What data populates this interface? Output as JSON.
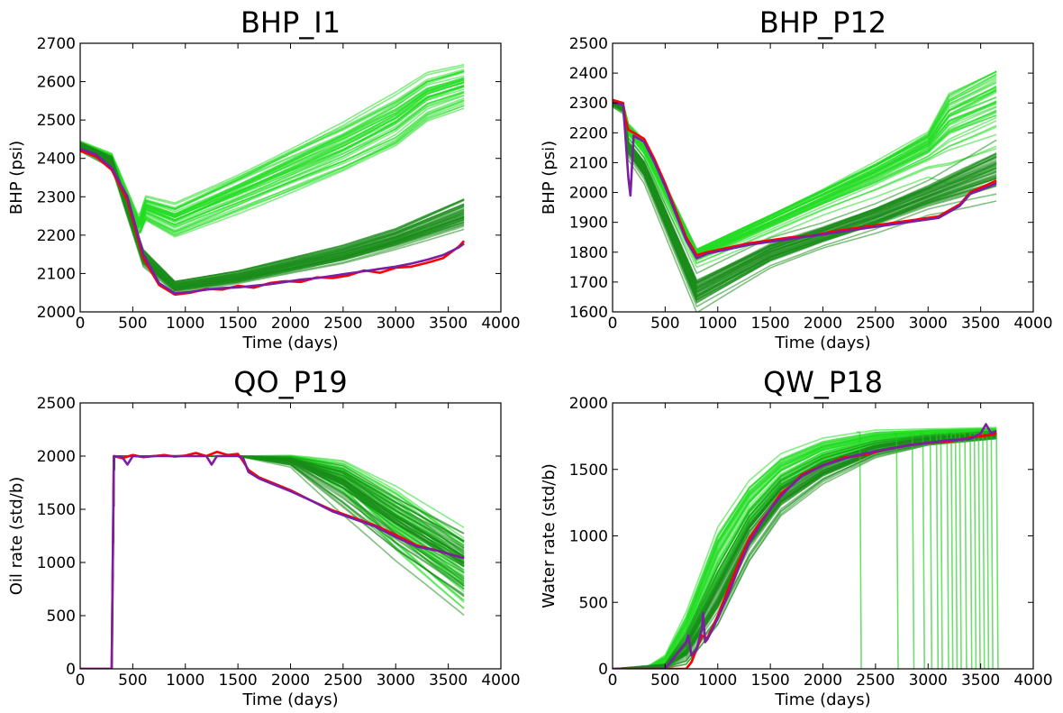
{
  "chart_data": [
    {
      "type": "line",
      "title": "BHP_I1",
      "xlabel": "Time (days)",
      "ylabel": "BHP (psi)",
      "xlim": [
        0,
        4000
      ],
      "ylim": [
        2000,
        2700
      ],
      "xticks": [
        0,
        500,
        1000,
        1500,
        2000,
        2500,
        3000,
        3500,
        4000
      ],
      "yticks": [
        2000,
        2100,
        2200,
        2300,
        2400,
        2500,
        2600,
        2700
      ],
      "ensemble": {
        "groups": [
          {
            "n": 45,
            "color": "#22dd22",
            "opacity": 0.55,
            "x": [
              0,
              300,
              560,
              620,
              900,
              1500,
              2000,
              2500,
              3000,
              3300,
              3650
            ],
            "y": [
              2435,
              2400,
              2220,
              2270,
              2240,
              2310,
              2370,
              2430,
              2500,
              2560,
              2590
            ],
            "spread": [
              8,
              10,
              20,
              25,
              35,
              40,
              45,
              50,
              55,
              50,
              45
            ]
          },
          {
            "n": 45,
            "color": "#1a8c1a",
            "opacity": 0.55,
            "x": [
              0,
              300,
              600,
              900,
              1500,
              2000,
              2500,
              3000,
              3650
            ],
            "y": [
              2430,
              2390,
              2140,
              2065,
              2090,
              2120,
              2150,
              2190,
              2255
            ],
            "spread": [
              8,
              10,
              15,
              10,
              12,
              14,
              16,
              18,
              28
            ]
          }
        ]
      },
      "series": [
        {
          "name": "",
          "color": "#ff0000",
          "x": [
            0,
            150,
            300,
            450,
            600,
            750,
            900,
            1050,
            1200,
            1350,
            1500,
            1650,
            1800,
            1950,
            2100,
            2250,
            2400,
            2550,
            2700,
            2850,
            3000,
            3150,
            3300,
            3450,
            3600,
            3650
          ],
          "y": [
            2420,
            2405,
            2370,
            2290,
            2140,
            2070,
            2045,
            2050,
            2060,
            2058,
            2068,
            2063,
            2075,
            2080,
            2078,
            2090,
            2088,
            2095,
            2108,
            2102,
            2115,
            2118,
            2128,
            2140,
            2170,
            2185
          ]
        },
        {
          "name": "",
          "color": "#7b1fa2",
          "x": [
            0,
            150,
            300,
            450,
            600,
            750,
            900,
            1050,
            1200,
            1350,
            1500,
            1650,
            1800,
            1950,
            2100,
            2250,
            2400,
            2550,
            2700,
            2850,
            3000,
            3150,
            3300,
            3450,
            3600,
            3650
          ],
          "y": [
            2425,
            2410,
            2375,
            2300,
            2150,
            2075,
            2048,
            2052,
            2058,
            2062,
            2064,
            2068,
            2072,
            2078,
            2084,
            2088,
            2094,
            2100,
            2106,
            2112,
            2118,
            2126,
            2136,
            2148,
            2168,
            2178
          ]
        }
      ]
    },
    {
      "type": "line",
      "title": "BHP_P12",
      "xlabel": "Time (days)",
      "ylabel": "BHP (psi)",
      "xlim": [
        0,
        4000
      ],
      "ylim": [
        1600,
        2500
      ],
      "xticks": [
        0,
        500,
        1000,
        1500,
        2000,
        2500,
        3000,
        3500,
        4000
      ],
      "yticks": [
        1600,
        1700,
        1800,
        1900,
        2000,
        2100,
        2200,
        2300,
        2400,
        2500
      ],
      "ensemble": {
        "groups": [
          {
            "n": 45,
            "color": "#22dd22",
            "opacity": 0.55,
            "x": [
              0,
              100,
              150,
              300,
              800,
              1500,
              2000,
              2500,
              3000,
              3200,
              3650
            ],
            "y": [
              2300,
              2290,
              2210,
              2150,
              1790,
              1900,
              1980,
              2060,
              2150,
              2230,
              2300
            ],
            "spread": [
              8,
              10,
              20,
              25,
              20,
              25,
              30,
              40,
              50,
              100,
              110
            ]
          },
          {
            "n": 45,
            "color": "#1a8c1a",
            "opacity": 0.55,
            "x": [
              0,
              100,
              150,
              300,
              800,
              1500,
              2000,
              2500,
              3000,
              3650
            ],
            "y": [
              2300,
              2280,
              2150,
              2080,
              1670,
              1800,
              1860,
              1920,
              1990,
              2080
            ],
            "spread": [
              8,
              10,
              25,
              30,
              45,
              35,
              30,
              35,
              40,
              70
            ]
          }
        ]
      },
      "series": [
        {
          "name": "",
          "color": "#ff0000",
          "x": [
            0,
            100,
            120,
            150,
            200,
            300,
            400,
            500,
            600,
            700,
            800,
            900,
            1100,
            1300,
            1500,
            1700,
            1900,
            2100,
            2300,
            2500,
            2700,
            2900,
            3100,
            3300,
            3400,
            3650
          ],
          "y": [
            2310,
            2300,
            2250,
            2210,
            2200,
            2180,
            2110,
            2030,
            1940,
            1850,
            1790,
            1800,
            1815,
            1830,
            1840,
            1850,
            1855,
            1870,
            1880,
            1890,
            1900,
            1910,
            1920,
            1960,
            2000,
            2040
          ]
        },
        {
          "name": "",
          "color": "#7b1fa2",
          "x": [
            0,
            100,
            120,
            150,
            170,
            200,
            300,
            400,
            500,
            600,
            700,
            800,
            900,
            1100,
            1300,
            1500,
            1700,
            1900,
            2100,
            2300,
            2500,
            2700,
            2900,
            3100,
            3300,
            3400,
            3650
          ],
          "y": [
            2300,
            2295,
            2200,
            2050,
            1990,
            2190,
            2170,
            2100,
            2020,
            1930,
            1840,
            1780,
            1795,
            1810,
            1825,
            1835,
            1845,
            1855,
            1865,
            1875,
            1885,
            1895,
            1905,
            1915,
            1955,
            1995,
            2030
          ]
        }
      ]
    },
    {
      "type": "line",
      "title": "QO_P19",
      "xlabel": "Time (days)",
      "ylabel": "Oil rate (std/b)",
      "xlim": [
        0,
        4000
      ],
      "ylim": [
        0,
        2500
      ],
      "xticks": [
        0,
        500,
        1000,
        1500,
        2000,
        2500,
        3000,
        3500,
        4000
      ],
      "yticks": [
        0,
        500,
        1000,
        1500,
        2000,
        2500
      ],
      "ensemble": {
        "groups": [
          {
            "n": 45,
            "color": "#22dd22",
            "opacity": 0.55,
            "x": [
              0,
              300,
              320,
              1500,
              2000,
              2500,
              3000,
              3650
            ],
            "y": [
              0,
              0,
              2000,
              2000,
              1990,
              1800,
              1400,
              900
            ],
            "spread": [
              0,
              0,
              0,
              0,
              10,
              100,
              200,
              250
            ]
          },
          {
            "n": 45,
            "color": "#1a8c1a",
            "opacity": 0.55,
            "x": [
              0,
              300,
              320,
              1500,
              2000,
              2500,
              3000,
              3650
            ],
            "y": [
              0,
              0,
              2000,
              2000,
              1950,
              1700,
              1350,
              950
            ],
            "spread": [
              0,
              0,
              0,
              0,
              30,
              150,
              200,
              250
            ]
          }
        ]
      },
      "series": [
        {
          "name": "",
          "color": "#ff0000",
          "x": [
            0,
            300,
            320,
            400,
            500,
            600,
            700,
            800,
            900,
            1000,
            1100,
            1200,
            1300,
            1400,
            1500,
            1550,
            1600,
            1700,
            1800,
            2000,
            2200,
            2400,
            2600,
            2800,
            3000,
            3200,
            3400,
            3650
          ],
          "y": [
            0,
            0,
            2000,
            1980,
            2010,
            1990,
            2000,
            2010,
            1995,
            2005,
            2030,
            2000,
            2040,
            2010,
            2020,
            1950,
            1870,
            1800,
            1760,
            1680,
            1580,
            1490,
            1420,
            1350,
            1260,
            1160,
            1110,
            1040
          ]
        },
        {
          "name": "",
          "color": "#7b1fa2",
          "x": [
            0,
            300,
            320,
            400,
            450,
            500,
            600,
            700,
            800,
            900,
            1000,
            1100,
            1200,
            1250,
            1300,
            1400,
            1500,
            1550,
            1600,
            1700,
            1800,
            2000,
            2200,
            2400,
            2600,
            2800,
            3000,
            3200,
            3400,
            3650
          ],
          "y": [
            0,
            0,
            2000,
            1990,
            1920,
            2000,
            1995,
            2000,
            2000,
            2000,
            2000,
            2000,
            2000,
            1920,
            2000,
            2000,
            2000,
            1980,
            1850,
            1790,
            1750,
            1670,
            1580,
            1480,
            1410,
            1340,
            1240,
            1150,
            1110,
            1040
          ]
        }
      ]
    },
    {
      "type": "line",
      "title": "QW_P18",
      "xlabel": "Time (days)",
      "ylabel": "Water rate (std/b)",
      "xlim": [
        0,
        4000
      ],
      "ylim": [
        0,
        2000
      ],
      "xticks": [
        0,
        500,
        1000,
        1500,
        2000,
        2500,
        3000,
        3500,
        4000
      ],
      "yticks": [
        0,
        500,
        1000,
        1500,
        2000
      ],
      "ensemble": {
        "groups": [
          {
            "n": 45,
            "color": "#22dd22",
            "opacity": 0.55,
            "x": [
              0,
              300,
              500,
              700,
              1000,
              1300,
              1600,
              2000,
              2500,
              3000,
              3650
            ],
            "y": [
              0,
              0,
              50,
              250,
              800,
              1200,
              1450,
              1620,
              1720,
              1760,
              1780
            ],
            "spread": [
              0,
              0,
              30,
              100,
              150,
              120,
              90,
              60,
              40,
              25,
              20
            ]
          },
          {
            "n": 45,
            "color": "#1a8c1a",
            "opacity": 0.55,
            "x": [
              0,
              500,
              700,
              1000,
              1300,
              1600,
              2000,
              2500,
              3000,
              3650
            ],
            "y": [
              0,
              20,
              150,
              550,
              1000,
              1300,
              1500,
              1650,
              1720,
              1760
            ],
            "spread": [
              0,
              10,
              80,
              150,
              130,
              100,
              70,
              40,
              25,
              20
            ]
          }
        ],
        "dropoffs": {
          "color": "#22cc22",
          "opacity": 0.65,
          "x": [
            2350,
            2700,
            2850,
            2950,
            3020,
            3080,
            3120,
            3180,
            3220,
            3260,
            3300,
            3350,
            3400,
            3440,
            3480,
            3520,
            3560,
            3600,
            3650
          ],
          "y": [
            1780,
            1770,
            1760,
            1770,
            1760,
            1775,
            1770,
            1765,
            1780,
            1770,
            1775,
            1770,
            1780,
            1775,
            1770,
            1780,
            1775,
            1780,
            1770
          ]
        }
      },
      "series": [
        {
          "name": "",
          "color": "#ff0000",
          "x": [
            0,
            600,
            700,
            750,
            800,
            850,
            900,
            1000,
            1100,
            1200,
            1300,
            1400,
            1500,
            1600,
            1700,
            1800,
            2000,
            2200,
            2400,
            2600,
            2800,
            3000,
            3200,
            3400,
            3600,
            3650
          ],
          "y": [
            0,
            0,
            0,
            50,
            150,
            250,
            230,
            400,
            600,
            800,
            980,
            1100,
            1200,
            1320,
            1380,
            1460,
            1530,
            1590,
            1610,
            1650,
            1680,
            1700,
            1710,
            1740,
            1760,
            1770
          ]
        },
        {
          "name": "",
          "color": "#7b1fa2",
          "x": [
            0,
            500,
            600,
            700,
            720,
            750,
            800,
            850,
            860,
            880,
            900,
            1000,
            1100,
            1200,
            1300,
            1400,
            1500,
            1600,
            1700,
            1800,
            2000,
            2200,
            2400,
            2600,
            2800,
            3000,
            3200,
            3400,
            3500,
            3550,
            3600,
            3650
          ],
          "y": [
            0,
            0,
            100,
            200,
            250,
            100,
            150,
            300,
            420,
            200,
            220,
            380,
            560,
            760,
            950,
            1080,
            1200,
            1300,
            1380,
            1450,
            1530,
            1580,
            1620,
            1650,
            1680,
            1700,
            1720,
            1730,
            1770,
            1840,
            1770,
            1790
          ]
        }
      ]
    }
  ]
}
